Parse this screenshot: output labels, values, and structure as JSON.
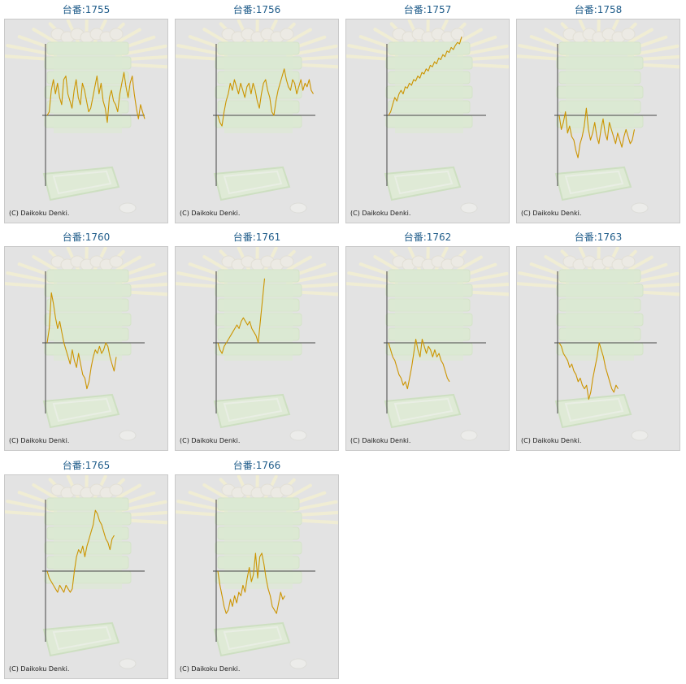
{
  "copyright": "(C) Daikoku Denki.",
  "colors": {
    "title": "#1f5c8a",
    "line": "#cc9400",
    "axis": "#444444",
    "panel_bg": "#e3e3e3"
  },
  "machines": [
    {
      "title": "台番:1755",
      "chart_data": {
        "type": "line",
        "y_range": [
          -1,
          1.1
        ],
        "values": [
          0,
          0.05,
          0.35,
          0.5,
          0.3,
          0.45,
          0.25,
          0.15,
          0.5,
          0.55,
          0.3,
          0.2,
          0.1,
          0.35,
          0.5,
          0.25,
          0.15,
          0.45,
          0.35,
          0.2,
          0.05,
          0.1,
          0.25,
          0.4,
          0.55,
          0.3,
          0.45,
          0.2,
          0.1,
          -0.1,
          0.25,
          0.35,
          0.2,
          0.15,
          0.05,
          0.3,
          0.45,
          0.6,
          0.4,
          0.25,
          0.45,
          0.55,
          0.3,
          0.1,
          -0.05,
          0.15,
          0.05,
          -0.05
        ]
      }
    },
    {
      "title": "台番:1756",
      "chart_data": {
        "type": "line",
        "y_range": [
          -1,
          1.1
        ],
        "values": [
          0,
          -0.1,
          -0.15,
          0.05,
          0.2,
          0.3,
          0.45,
          0.35,
          0.5,
          0.4,
          0.3,
          0.45,
          0.35,
          0.25,
          0.4,
          0.45,
          0.3,
          0.45,
          0.35,
          0.2,
          0.1,
          0.3,
          0.45,
          0.5,
          0.35,
          0.25,
          0.05,
          0,
          0.2,
          0.35,
          0.45,
          0.55,
          0.65,
          0.5,
          0.4,
          0.35,
          0.5,
          0.45,
          0.3,
          0.4,
          0.5,
          0.35,
          0.45,
          0.4,
          0.5,
          0.35,
          0.3
        ]
      }
    },
    {
      "title": "台番:1757",
      "chart_data": {
        "type": "line",
        "y_range": [
          -1,
          1.1
        ],
        "values": [
          0,
          0.05,
          0.15,
          0.25,
          0.2,
          0.3,
          0.35,
          0.3,
          0.4,
          0.38,
          0.45,
          0.42,
          0.5,
          0.48,
          0.55,
          0.52,
          0.6,
          0.58,
          0.65,
          0.62,
          0.7,
          0.68,
          0.75,
          0.72,
          0.8,
          0.78,
          0.85,
          0.82,
          0.9,
          0.88,
          0.95,
          0.92,
          0.98,
          1.02,
          1.0,
          1.1
        ]
      }
    },
    {
      "title": "台番:1758",
      "chart_data": {
        "type": "line",
        "y_range": [
          -1,
          1.1
        ],
        "values": [
          0,
          -0.2,
          -0.1,
          0.05,
          -0.25,
          -0.15,
          -0.3,
          -0.35,
          -0.5,
          -0.6,
          -0.4,
          -0.3,
          -0.15,
          0.1,
          -0.2,
          -0.35,
          -0.25,
          -0.1,
          -0.3,
          -0.4,
          -0.2,
          -0.05,
          -0.25,
          -0.35,
          -0.1,
          -0.2,
          -0.3,
          -0.4,
          -0.25,
          -0.35,
          -0.45,
          -0.3,
          -0.2,
          -0.3,
          -0.4,
          -0.35,
          -0.2
        ]
      }
    },
    {
      "title": "台番:1760",
      "chart_data": {
        "type": "line",
        "y_range": [
          -1,
          1.1
        ],
        "values": [
          0,
          0.2,
          0.7,
          0.55,
          0.35,
          0.2,
          0.3,
          0.15,
          0,
          -0.1,
          -0.2,
          -0.3,
          -0.1,
          -0.25,
          -0.35,
          -0.15,
          -0.3,
          -0.45,
          -0.5,
          -0.65,
          -0.55,
          -0.35,
          -0.2,
          -0.1,
          -0.15,
          -0.05,
          -0.15,
          -0.1,
          0,
          -0.05,
          -0.2,
          -0.3,
          -0.4,
          -0.2
        ]
      }
    },
    {
      "title": "台番:1761",
      "chart_data": {
        "type": "line",
        "y_range": [
          -1,
          1.1
        ],
        "values": [
          0,
          -0.1,
          -0.15,
          -0.05,
          0,
          0.05,
          0.1,
          0.15,
          0.2,
          0.25,
          0.2,
          0.3,
          0.35,
          0.3,
          0.25,
          0.3,
          0.2,
          0.15,
          0.1,
          0,
          0.3,
          0.6,
          0.9
        ]
      }
    },
    {
      "title": "台番:1762",
      "chart_data": {
        "type": "line",
        "y_range": [
          -1,
          1.1
        ],
        "values": [
          0,
          -0.1,
          -0.2,
          -0.25,
          -0.35,
          -0.45,
          -0.5,
          -0.6,
          -0.55,
          -0.65,
          -0.5,
          -0.35,
          -0.15,
          0.05,
          -0.1,
          -0.2,
          0.05,
          -0.05,
          -0.15,
          -0.05,
          -0.1,
          -0.2,
          -0.1,
          -0.2,
          -0.15,
          -0.25,
          -0.3,
          -0.4,
          -0.5,
          -0.55
        ]
      }
    },
    {
      "title": "台番:1763",
      "chart_data": {
        "type": "line",
        "y_range": [
          -1,
          1.1
        ],
        "values": [
          0,
          -0.05,
          -0.15,
          -0.2,
          -0.25,
          -0.35,
          -0.3,
          -0.4,
          -0.45,
          -0.55,
          -0.5,
          -0.6,
          -0.65,
          -0.6,
          -0.8,
          -0.7,
          -0.5,
          -0.35,
          -0.2,
          0,
          -0.1,
          -0.2,
          -0.35,
          -0.45,
          -0.55,
          -0.65,
          -0.7,
          -0.6,
          -0.65
        ]
      }
    },
    {
      "title": "台番:1765",
      "chart_data": {
        "type": "line",
        "y_range": [
          -1,
          1.1
        ],
        "values": [
          0,
          -0.1,
          -0.15,
          -0.2,
          -0.25,
          -0.3,
          -0.2,
          -0.25,
          -0.3,
          -0.2,
          -0.25,
          -0.3,
          -0.25,
          0,
          0.2,
          0.3,
          0.25,
          0.35,
          0.2,
          0.35,
          0.45,
          0.55,
          0.65,
          0.85,
          0.8,
          0.7,
          0.65,
          0.55,
          0.45,
          0.4,
          0.3,
          0.45,
          0.5
        ]
      }
    },
    {
      "title": "台番:1766",
      "chart_data": {
        "type": "line",
        "y_range": [
          -1,
          1.1
        ],
        "values": [
          0,
          -0.2,
          -0.35,
          -0.5,
          -0.6,
          -0.55,
          -0.4,
          -0.5,
          -0.35,
          -0.45,
          -0.3,
          -0.35,
          -0.2,
          -0.3,
          -0.1,
          0.05,
          -0.15,
          -0.05,
          0.25,
          -0.1,
          0.2,
          0.25,
          0.1,
          -0.1,
          -0.25,
          -0.35,
          -0.5,
          -0.55,
          -0.6,
          -0.45,
          -0.3,
          -0.4,
          -0.35
        ]
      }
    }
  ]
}
